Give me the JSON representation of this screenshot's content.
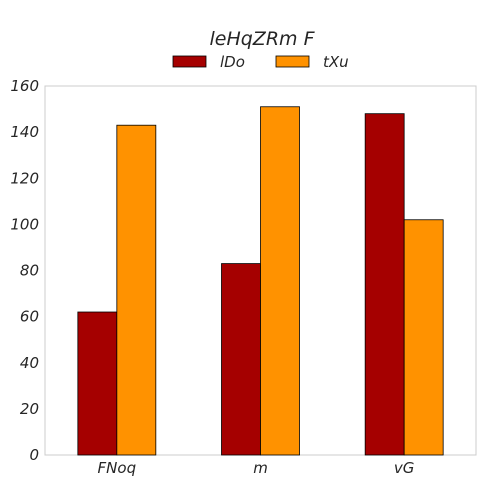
{
  "chart_data": {
    "type": "bar",
    "title": "leHqZRm  F",
    "categories": [
      "FNoq",
      "m",
      "vG"
    ],
    "series": [
      {
        "name": "lDo",
        "values": [
          62,
          83,
          148
        ],
        "color": "#a50000"
      },
      {
        "name": "tXu",
        "values": [
          143,
          151,
          102
        ],
        "color": "#ff9200"
      }
    ],
    "ylim": [
      0,
      160
    ],
    "yticks": [
      0,
      20,
      40,
      60,
      80,
      100,
      120,
      140,
      160
    ],
    "xlabel": "",
    "ylabel": "",
    "grid": false,
    "legend_position": "top-center"
  }
}
